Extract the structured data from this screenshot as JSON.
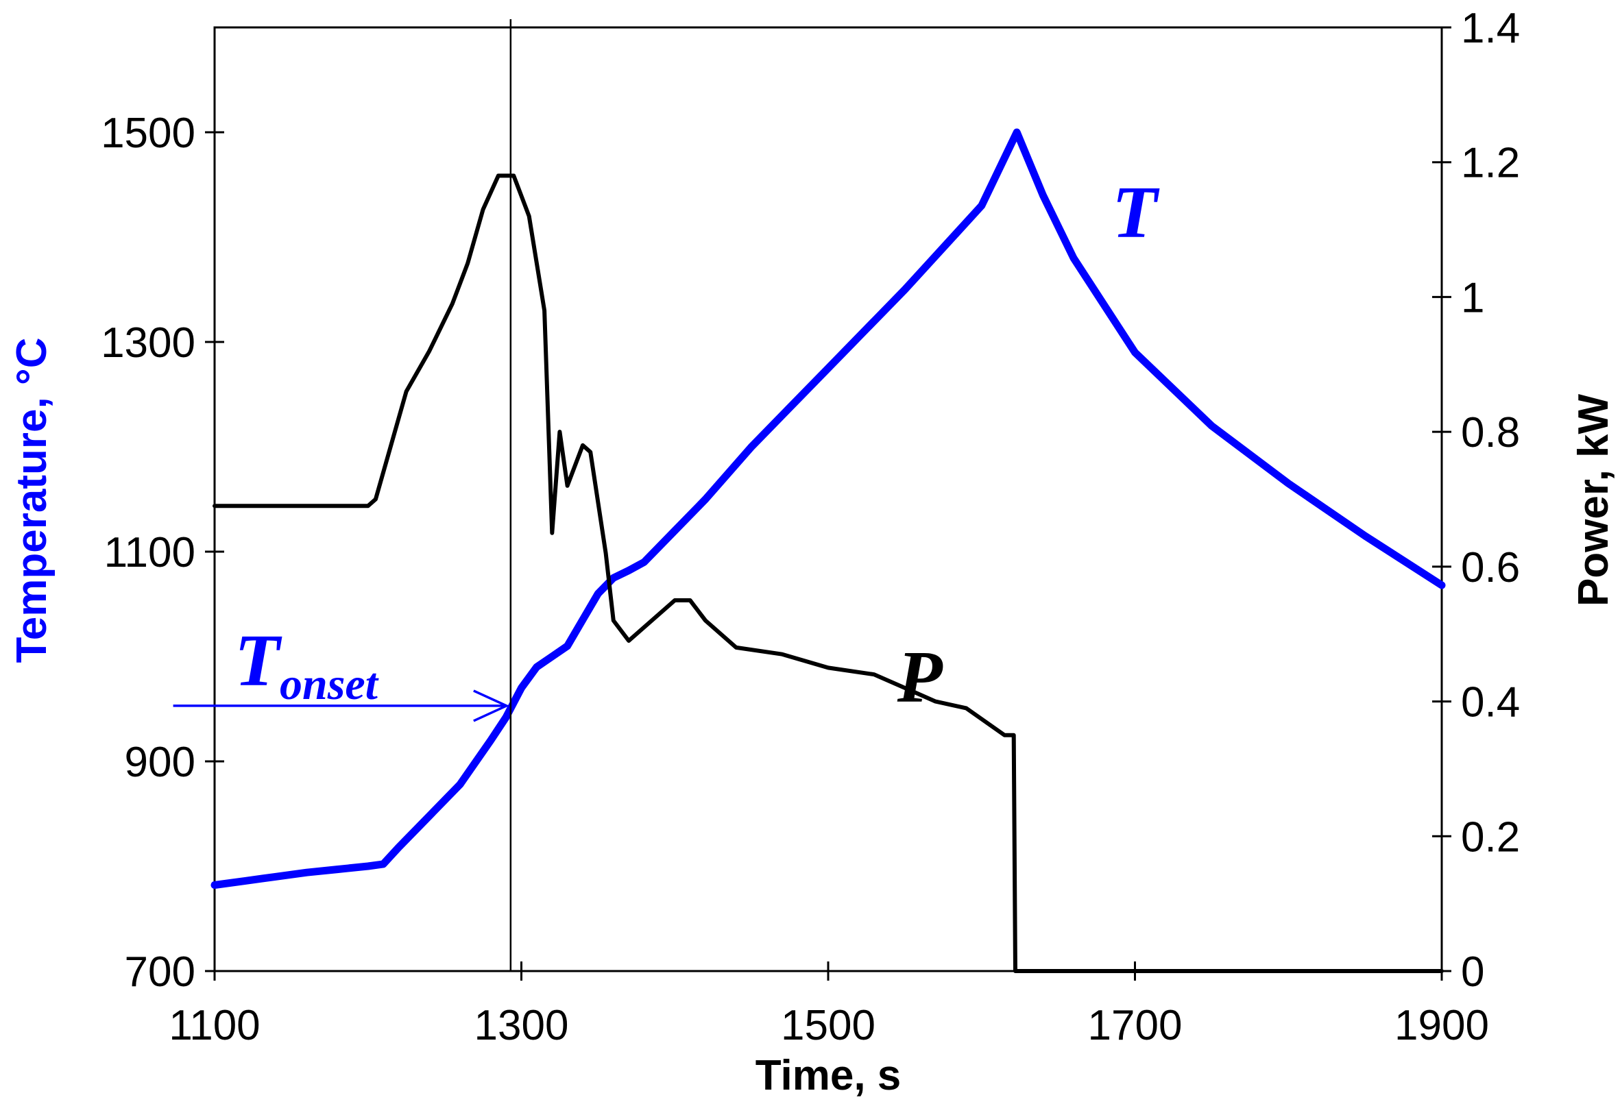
{
  "chart_data": {
    "type": "line",
    "x_axis": {
      "label": "Time, s",
      "range": [
        1100,
        1900
      ],
      "ticks": [
        1100,
        1300,
        1500,
        1700,
        1900
      ]
    },
    "y_left_axis": {
      "label": "Temperature, °C",
      "range": [
        700,
        1600
      ],
      "ticks": [
        700,
        900,
        1100,
        1300,
        1500
      ]
    },
    "y_right_axis": {
      "label": "Power, kW",
      "range": [
        0,
        1.4
      ],
      "ticks": [
        0,
        0.2,
        0.4,
        0.6,
        0.8,
        1,
        1.2,
        1.4
      ],
      "tick_labels": [
        "0",
        "0.2",
        "0.4",
        "0.6",
        "0.8",
        "1",
        "1.2",
        "1.4"
      ]
    },
    "grid": false,
    "series": [
      {
        "name": "T",
        "axis": "left",
        "color": "#0000ff",
        "points": [
          [
            1100,
            782
          ],
          [
            1120,
            786
          ],
          [
            1140,
            790
          ],
          [
            1160,
            794
          ],
          [
            1180,
            797
          ],
          [
            1200,
            800
          ],
          [
            1210,
            802
          ],
          [
            1220,
            818
          ],
          [
            1240,
            848
          ],
          [
            1260,
            878
          ],
          [
            1280,
            920
          ],
          [
            1290,
            942
          ],
          [
            1300,
            970
          ],
          [
            1310,
            990
          ],
          [
            1320,
            1000
          ],
          [
            1330,
            1010
          ],
          [
            1340,
            1035
          ],
          [
            1350,
            1060
          ],
          [
            1360,
            1075
          ],
          [
            1370,
            1082
          ],
          [
            1380,
            1090
          ],
          [
            1400,
            1120
          ],
          [
            1420,
            1150
          ],
          [
            1450,
            1200
          ],
          [
            1500,
            1275
          ],
          [
            1550,
            1350
          ],
          [
            1600,
            1430
          ],
          [
            1623,
            1500
          ],
          [
            1640,
            1440
          ],
          [
            1660,
            1380
          ],
          [
            1700,
            1290
          ],
          [
            1750,
            1220
          ],
          [
            1800,
            1165
          ],
          [
            1850,
            1115
          ],
          [
            1900,
            1068
          ]
        ]
      },
      {
        "name": "P",
        "axis": "right",
        "color": "#000000",
        "points": [
          [
            1100,
            0.69
          ],
          [
            1200,
            0.69
          ],
          [
            1205,
            0.7
          ],
          [
            1215,
            0.78
          ],
          [
            1225,
            0.86
          ],
          [
            1240,
            0.92
          ],
          [
            1255,
            0.99
          ],
          [
            1265,
            1.05
          ],
          [
            1275,
            1.13
          ],
          [
            1285,
            1.18
          ],
          [
            1295,
            1.18
          ],
          [
            1305,
            1.12
          ],
          [
            1315,
            0.98
          ],
          [
            1320,
            0.65
          ],
          [
            1325,
            0.8
          ],
          [
            1330,
            0.72
          ],
          [
            1340,
            0.78
          ],
          [
            1345,
            0.77
          ],
          [
            1355,
            0.62
          ],
          [
            1360,
            0.52
          ],
          [
            1370,
            0.49
          ],
          [
            1385,
            0.52
          ],
          [
            1400,
            0.55
          ],
          [
            1410,
            0.55
          ],
          [
            1420,
            0.52
          ],
          [
            1440,
            0.48
          ],
          [
            1470,
            0.47
          ],
          [
            1500,
            0.45
          ],
          [
            1530,
            0.44
          ],
          [
            1550,
            0.42
          ],
          [
            1570,
            0.4
          ],
          [
            1590,
            0.39
          ],
          [
            1615,
            0.35
          ],
          [
            1621,
            0.35
          ],
          [
            1622,
            0.0
          ],
          [
            1900,
            0.0
          ]
        ]
      }
    ],
    "annotations": {
      "vertical_line_x": 1293,
      "onset_arrow": {
        "x_start": 1073,
        "x_end": 1293,
        "y": 953,
        "label_main": "T",
        "label_sub": "onset"
      },
      "label_T": {
        "text": "T",
        "x": 1685,
        "y": 1400
      },
      "label_P": {
        "text": "P",
        "x": 1545,
        "y": 0.44
      }
    }
  }
}
